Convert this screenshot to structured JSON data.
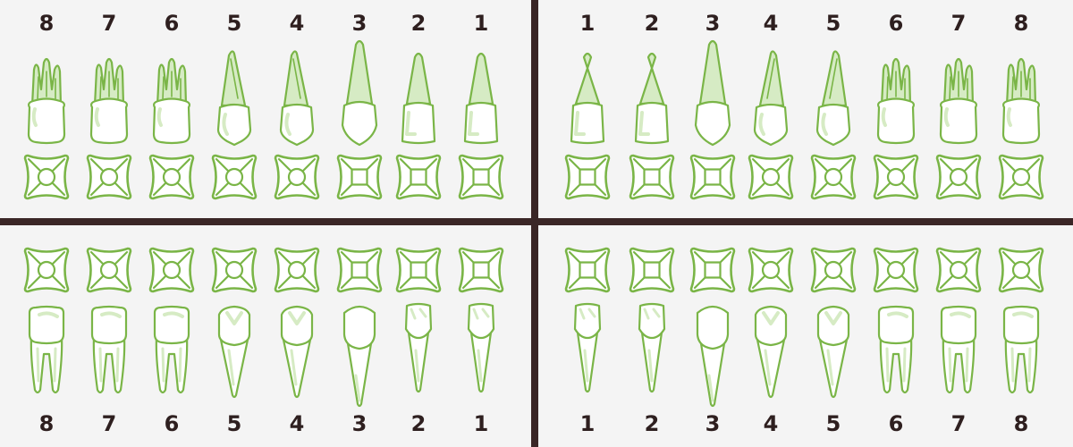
{
  "colors": {
    "outline": "#7ab547",
    "shade": "#d6ebc4",
    "fill": "#ffffff",
    "divider": "#3a2626",
    "numbers": "#2e1f1f"
  },
  "quadrants": [
    {
      "id": "upper-right",
      "arch": "upper",
      "numbers": [
        "8",
        "7",
        "6",
        "5",
        "4",
        "3",
        "2",
        "1"
      ]
    },
    {
      "id": "upper-left",
      "arch": "upper",
      "numbers": [
        "1",
        "2",
        "3",
        "4",
        "5",
        "6",
        "7",
        "8"
      ]
    },
    {
      "id": "lower-right",
      "arch": "lower",
      "numbers": [
        "8",
        "7",
        "6",
        "5",
        "4",
        "3",
        "2",
        "1"
      ]
    },
    {
      "id": "lower-left",
      "arch": "lower",
      "numbers": [
        "1",
        "2",
        "3",
        "4",
        "5",
        "6",
        "7",
        "8"
      ]
    }
  ]
}
